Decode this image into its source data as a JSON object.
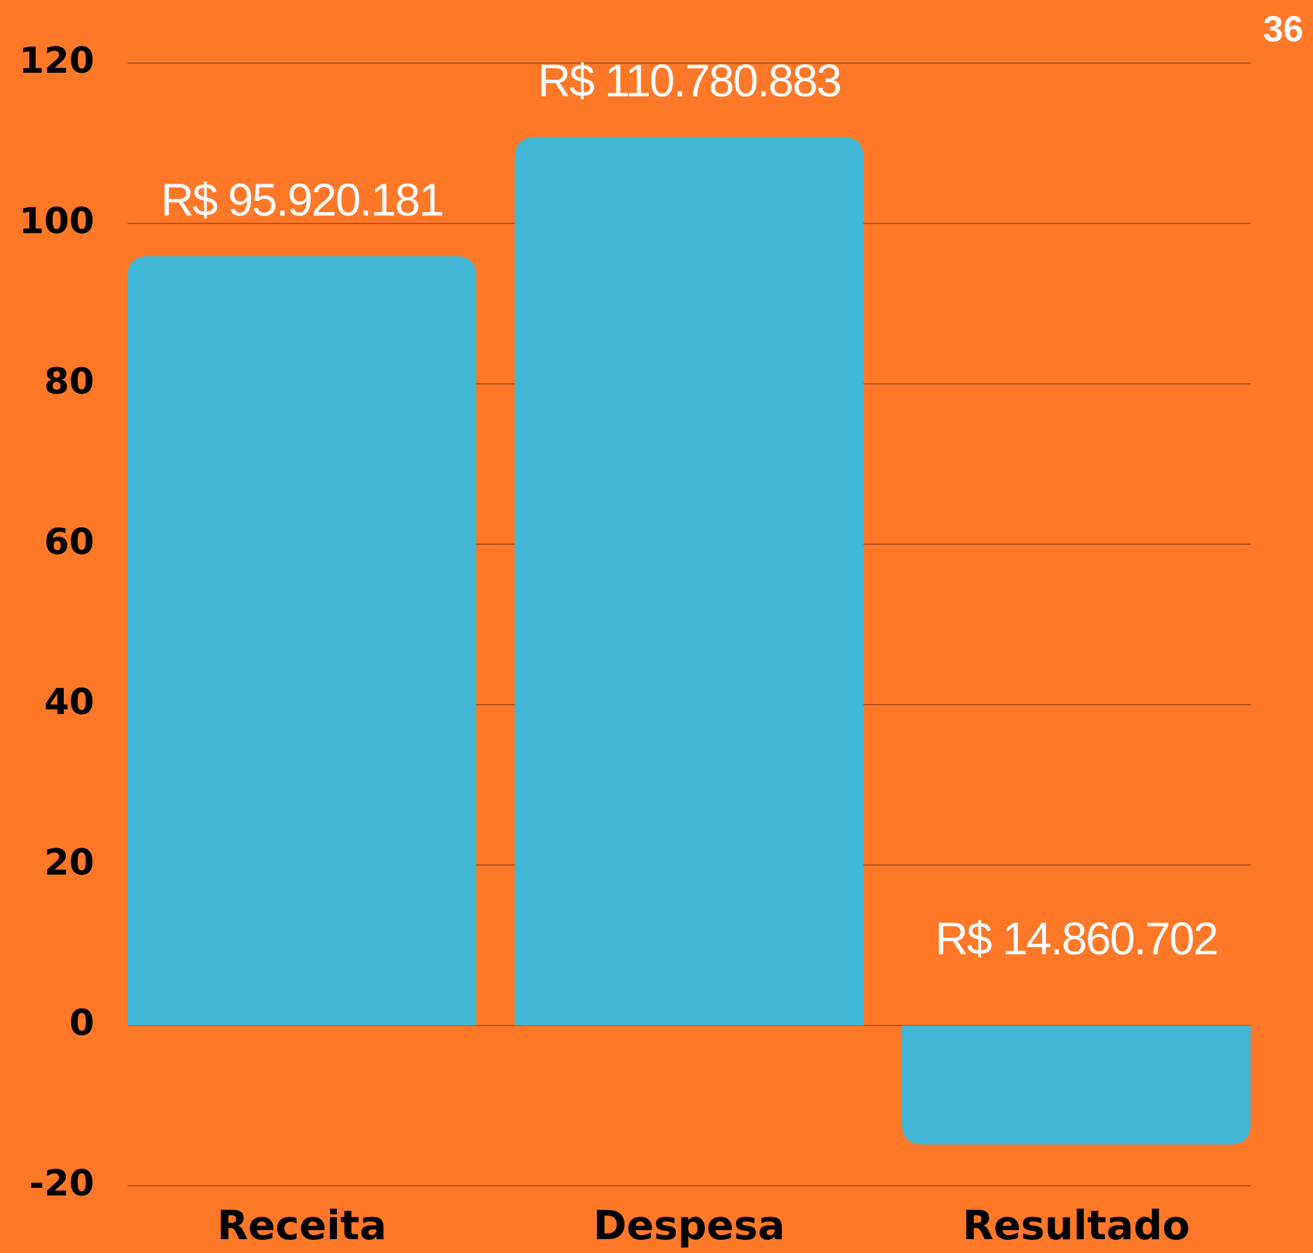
{
  "page_number": "36",
  "chart_data": {
    "type": "bar",
    "categories": [
      "Receita",
      "Despesa",
      "Resultado"
    ],
    "values": [
      95.920181,
      110.780883,
      -14.860702
    ],
    "value_labels": [
      "R$ 95.920.181",
      "R$ 110.780.883",
      "R$ 14.860.702"
    ],
    "color": "#42b6d5",
    "ylim": [
      -20,
      120
    ],
    "yticks": [
      -20,
      0,
      20,
      40,
      60,
      80,
      100,
      120
    ],
    "grid": true
  }
}
